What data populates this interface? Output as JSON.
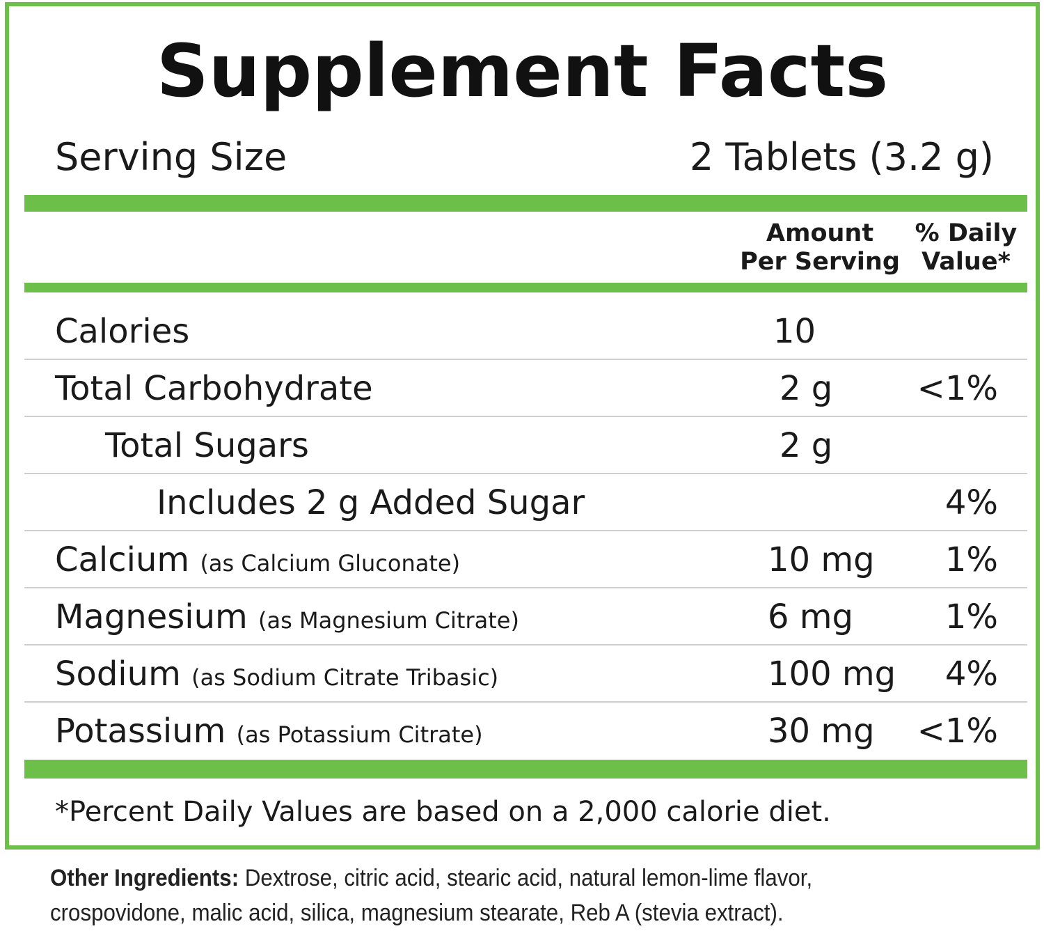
{
  "title": "Supplement Facts",
  "serving": {
    "label": "Serving Size",
    "value": "2 Tablets (3.2 g)"
  },
  "columns": {
    "amount_line1": "Amount",
    "amount_line2": "Per Serving",
    "dv_line1": "% Daily",
    "dv_line2": "Value*"
  },
  "rows": [
    {
      "name": "Calories",
      "sub": "",
      "amount": "10",
      "dv": ""
    },
    {
      "name": "Total Carbohydrate",
      "sub": "",
      "amount": "2 g",
      "dv": "<1%"
    },
    {
      "name": "Total Sugars",
      "sub": "",
      "amount": "2 g",
      "dv": ""
    },
    {
      "name": "Includes 2 g Added Sugar",
      "sub": "",
      "amount": "",
      "dv": "4%"
    },
    {
      "name": "Calcium",
      "sub": "(as Calcium Gluconate)",
      "amount": "10 mg",
      "dv": "1%"
    },
    {
      "name": "Magnesium",
      "sub": "(as Magnesium Citrate)",
      "amount": "6 mg",
      "dv": "1%"
    },
    {
      "name": "Sodium",
      "sub": "(as Sodium Citrate Tribasic)",
      "amount": "100 mg",
      "dv": "4%"
    },
    {
      "name": "Potassium",
      "sub": "(as Potassium Citrate)",
      "amount": "30 mg",
      "dv": "<1%"
    }
  ],
  "footnote": "*Percent Daily Values are based on a 2,000 calorie diet.",
  "other_ingredients": {
    "label": "Other Ingredients:",
    "text": "Dextrose, citric acid, stearic acid, natural lemon-lime flavor, crospovidone, malic acid, silica, magnesium stearate, Reb A (stevia extract)."
  },
  "colors": {
    "accent": "#6cc04a",
    "text": "#1a1a1a",
    "divider": "#cfcfcf"
  }
}
